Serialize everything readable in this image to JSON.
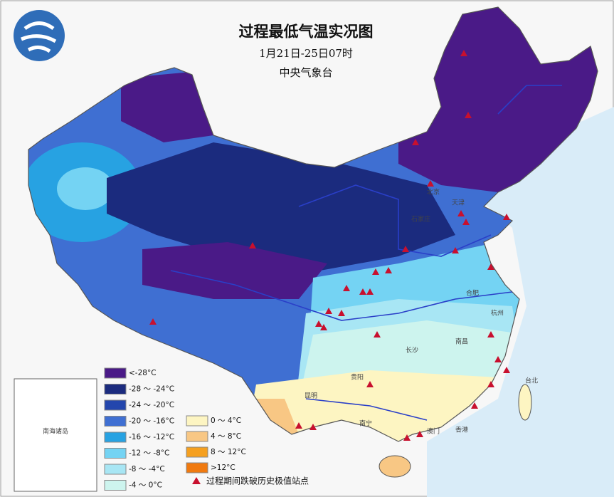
{
  "header": {
    "title": "过程最低气温实况图",
    "subtitle": "1月21日-25日07时",
    "agency": "中央气象台"
  },
  "legend": {
    "items": [
      {
        "label": "<-28°C",
        "color": "#4a1a87"
      },
      {
        "label": "-28 ～ -24°C",
        "color": "#1b2b7e"
      },
      {
        "label": "-24 ～ -20°C",
        "color": "#2346ad"
      },
      {
        "label": "-20 ～ -16°C",
        "color": "#3f6fd2"
      },
      {
        "label": "-16 ～ -12°C",
        "color": "#27a2e2"
      },
      {
        "label": "-12 ～ -8°C",
        "color": "#74d3f3"
      },
      {
        "label": "-8 ～ -4°C",
        "color": "#a8e6f4"
      },
      {
        "label": "-4 ～ 0°C",
        "color": "#cdf4ee"
      },
      {
        "label": "0 ～ 4°C",
        "color": "#fdf5c2"
      },
      {
        "label": "4 ～ 8°C",
        "color": "#f8c784"
      },
      {
        "label": "8 ～ 12°C",
        "color": "#f5a020"
      },
      {
        "label": ">12°C",
        "color": "#f07a10"
      }
    ],
    "marker": {
      "label": "过程期间跌破历史极值站点",
      "color": "#c8102e"
    }
  },
  "inset": {
    "label": "南海诸岛"
  },
  "cities": [
    "北京",
    "天津",
    "石家庄",
    "合肥",
    "杭州",
    "南昌",
    "长沙",
    "贵阳",
    "昆明",
    "南宁",
    "澳门",
    "香港",
    "台北"
  ]
}
